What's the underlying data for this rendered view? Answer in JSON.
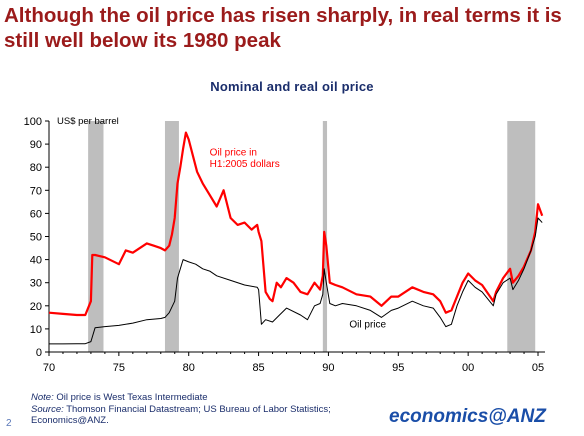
{
  "slide": {
    "title": "Although the oil price has risen sharply, in real terms it is still well below its 1980 peak",
    "page_number": "2",
    "brand_prefix": "economics@",
    "brand_suffix": "ANZ",
    "note_label": "Note:",
    "note_text": " Oil price is West Texas Intermediate",
    "source_label": "Source:",
    "source_text": " Thomson Financial Datastream; US Bureau of Labor Statistics; Economics@ANZ."
  },
  "colors": {
    "title": "#9b1b1b",
    "chart_title": "#1a2d6b",
    "real_series": "#ff0000",
    "nominal_series": "#000000",
    "recession": "#bebebe",
    "brand": "#1a4ea8"
  },
  "chart_data": {
    "type": "line",
    "title": "Nominal and real oil price",
    "ylabel": "US$ per barrel",
    "xlim": [
      1970,
      2005.5
    ],
    "ylim": [
      0,
      100
    ],
    "x_ticks": [
      1970,
      1975,
      1980,
      1985,
      1990,
      1995,
      2000,
      2005
    ],
    "x_tick_labels": [
      "70",
      "75",
      "80",
      "85",
      "90",
      "95",
      "00",
      "05"
    ],
    "y_ticks": [
      0,
      10,
      20,
      30,
      40,
      50,
      60,
      70,
      80,
      90,
      100
    ],
    "grid": false,
    "recessions": [
      [
        1972.8,
        1973.9
      ],
      [
        1978.3,
        1979.3
      ],
      [
        1989.6,
        1989.9
      ],
      [
        2002.8,
        2004.8
      ]
    ],
    "annotations": [
      {
        "text": "Oil price in",
        "x": 1981.5,
        "y": 85
      },
      {
        "text": "H1:2005 dollars",
        "x": 1981.5,
        "y": 80
      },
      {
        "text": "Oil price",
        "x": 1991.5,
        "y": 10.5
      }
    ],
    "series": [
      {
        "key": "real",
        "x": [
          1970,
          1971,
          1972,
          1972.6,
          1972.8,
          1973.0,
          1973.1,
          1973.3,
          1974,
          1975,
          1975.5,
          1976,
          1977,
          1977.5,
          1978,
          1978.3,
          1978.6,
          1978.8,
          1979,
          1979.2,
          1979.4,
          1979.6,
          1979.8,
          1980,
          1980.3,
          1980.6,
          1981,
          1981.5,
          1982,
          1982.5,
          1983,
          1983.5,
          1984,
          1984.5,
          1984.9,
          1985,
          1985.2,
          1985.5,
          1985.8,
          1986,
          1986.3,
          1986.6,
          1987,
          1987.5,
          1988,
          1988.5,
          1989,
          1989.4,
          1989.6,
          1989.7,
          1989.85,
          1990.1,
          1990.5,
          1991,
          1992,
          1993,
          1993.8,
          1994.5,
          1995,
          1996,
          1996.8,
          1997.5,
          1998,
          1998.4,
          1998.8,
          1999.2,
          1999.6,
          2000,
          2000.5,
          2001,
          2001.8,
          2002,
          2002.5,
          2003,
          2003.2,
          2003.6,
          2004,
          2004.5,
          2004.8,
          2005,
          2005.3
        ],
        "values": [
          17,
          16.5,
          16,
          16,
          19,
          22,
          42,
          42,
          41,
          38,
          44,
          43,
          47,
          46,
          45,
          44,
          46,
          51,
          58,
          73,
          80,
          88,
          95,
          92,
          85,
          78,
          73,
          68,
          63,
          70,
          58,
          55,
          56,
          53,
          55,
          52,
          48,
          26,
          23,
          22,
          30,
          28,
          32,
          30,
          26,
          25,
          30,
          27,
          33,
          52,
          46,
          30,
          29,
          28,
          25,
          24,
          20,
          24,
          24,
          28,
          26,
          25,
          22,
          17,
          18,
          24,
          30,
          34,
          31,
          29,
          22,
          26,
          32,
          36,
          30,
          33,
          37,
          44,
          52,
          64,
          59
        ]
      },
      {
        "key": "nominal",
        "x": [
          1970,
          1971,
          1972,
          1972.6,
          1973.0,
          1973.3,
          1974,
          1975,
          1976,
          1977,
          1978,
          1978.3,
          1978.6,
          1979,
          1979.2,
          1979.4,
          1979.6,
          1980,
          1980.5,
          1981,
          1981.5,
          1982,
          1983,
          1984,
          1984.9,
          1985,
          1985.2,
          1985.5,
          1986,
          1986.5,
          1987,
          1988,
          1988.5,
          1989,
          1989.4,
          1989.6,
          1989.7,
          1989.85,
          1990.1,
          1990.5,
          1991,
          1992,
          1993,
          1993.8,
          1994.5,
          1995,
          1996,
          1996.8,
          1997.5,
          1998,
          1998.4,
          1998.8,
          1999.2,
          1999.6,
          2000,
          2000.5,
          2001,
          2001.8,
          2002,
          2002.5,
          2003,
          2003.2,
          2003.6,
          2004,
          2004.5,
          2004.8,
          2005,
          2005.3
        ],
        "values": [
          3.5,
          3.5,
          3.6,
          3.6,
          4.5,
          10.5,
          11,
          11.5,
          12.5,
          14,
          14.5,
          15,
          17,
          22,
          32,
          36,
          40,
          39,
          38,
          36,
          35,
          33,
          31,
          29,
          28,
          27,
          12,
          14,
          13,
          16,
          19,
          16,
          14,
          20,
          21,
          25,
          36,
          30,
          21,
          20,
          21,
          20,
          18,
          15,
          18,
          19,
          22,
          20,
          19,
          15,
          11,
          12,
          20,
          26,
          31,
          28,
          26,
          20,
          25,
          30,
          32,
          27,
          31,
          36,
          44,
          50,
          58,
          56
        ]
      }
    ]
  }
}
